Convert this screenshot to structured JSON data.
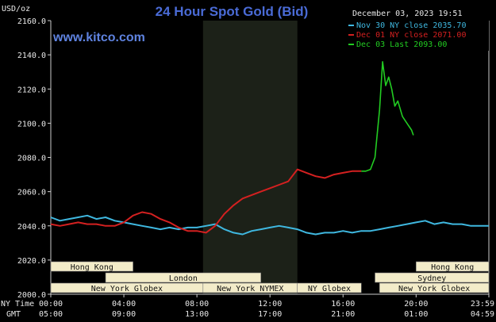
{
  "header": {
    "title": "24 Hour Spot Gold (Bid)",
    "units": "USD/oz",
    "brand": "www.kitco.com",
    "timestamp": "December 03, 2023 19:51"
  },
  "colors": {
    "background": "#000000",
    "nov30": "#3fb8e0",
    "dec01": "#d42020",
    "dec03": "#22cc22",
    "title": "#4a6bd6",
    "shade": "#1c2118",
    "session_box": "#f3ecc9"
  },
  "chart_data": {
    "type": "line",
    "title": "24 Hour Spot Gold (Bid)",
    "ylabel": "USD/oz",
    "ylim": [
      2000,
      2160
    ],
    "yticks": [
      "2160.0",
      "2140.0",
      "2120.0",
      "2100.0",
      "2080.0",
      "2060.0",
      "2040.0",
      "2020.0",
      "2000.0"
    ],
    "xlim": [
      "00:00",
      "23:59"
    ],
    "xticks": [
      {
        "ny": "00:00",
        "gmt": "05:00"
      },
      {
        "ny": "04:00",
        "gmt": "09:00"
      },
      {
        "ny": "08:00",
        "gmt": "13:00"
      },
      {
        "ny": "12:00",
        "gmt": "17:00"
      },
      {
        "ny": "16:00",
        "gmt": "21:00"
      },
      {
        "ny": "20:00",
        "gmt": "01:00"
      },
      {
        "ny": "23:59",
        "gmt": "04:59"
      }
    ],
    "xaxis_labels": {
      "ny": "NY Time",
      "gmt": "GMT"
    },
    "shaded_range": [
      "08:20",
      "13:30"
    ],
    "grid": false,
    "legend_position": "top-right",
    "series": [
      {
        "name": "Nov 30 NY close 2035.70",
        "color": "#3fb8e0",
        "x": [
          "00:00",
          "00:30",
          "01:00",
          "01:30",
          "02:00",
          "02:30",
          "03:00",
          "03:30",
          "04:00",
          "04:30",
          "05:00",
          "05:30",
          "06:00",
          "06:30",
          "07:00",
          "07:30",
          "08:00",
          "08:30",
          "09:00",
          "09:30",
          "10:00",
          "10:30",
          "11:00",
          "11:30",
          "12:00",
          "12:30",
          "13:00",
          "13:30",
          "14:00",
          "14:30",
          "15:00",
          "15:30",
          "16:00",
          "16:30",
          "17:00",
          "17:30",
          "18:00",
          "18:30",
          "19:00",
          "19:30",
          "20:00",
          "20:30",
          "21:00",
          "21:30",
          "22:00",
          "22:30",
          "23:00",
          "23:30",
          "23:59"
        ],
        "values": [
          2045,
          2043,
          2044,
          2045,
          2046,
          2044,
          2045,
          2043,
          2042,
          2041,
          2040,
          2039,
          2038,
          2039,
          2038,
          2039,
          2039,
          2040,
          2041,
          2038,
          2036,
          2035,
          2037,
          2038,
          2039,
          2040,
          2039,
          2038,
          2036,
          2035,
          2036,
          2036,
          2037,
          2036,
          2037,
          2037,
          2038,
          2039,
          2040,
          2041,
          2042,
          2043,
          2041,
          2042,
          2041,
          2041,
          2040,
          2040,
          2040
        ]
      },
      {
        "name": "Dec 01 NY close 2071.00",
        "color": "#d42020",
        "x": [
          "00:00",
          "00:30",
          "01:00",
          "01:30",
          "02:00",
          "02:30",
          "03:00",
          "03:30",
          "04:00",
          "04:30",
          "05:00",
          "05:30",
          "06:00",
          "06:30",
          "07:00",
          "07:30",
          "08:00",
          "08:30",
          "09:00",
          "09:30",
          "10:00",
          "10:30",
          "11:00",
          "11:30",
          "12:00",
          "12:30",
          "13:00",
          "13:30",
          "14:00",
          "14:30",
          "15:00",
          "15:30",
          "16:00",
          "16:30",
          "17:00"
        ],
        "values": [
          2041,
          2040,
          2041,
          2042,
          2041,
          2041,
          2040,
          2040,
          2042,
          2046,
          2048,
          2047,
          2044,
          2042,
          2039,
          2037,
          2037,
          2036,
          2040,
          2047,
          2052,
          2056,
          2058,
          2060,
          2062,
          2064,
          2066,
          2073,
          2071,
          2069,
          2068,
          2070,
          2071,
          2072,
          2072
        ]
      },
      {
        "name": "Dec 03 Last 2093.00",
        "color": "#22cc22",
        "x": [
          "17:00",
          "17:15",
          "17:30",
          "17:45",
          "18:00",
          "18:10",
          "18:20",
          "18:30",
          "18:40",
          "18:50",
          "19:00",
          "19:15",
          "19:30",
          "19:45",
          "19:51"
        ],
        "values": [
          2072,
          2072,
          2073,
          2080,
          2108,
          2136,
          2122,
          2127,
          2120,
          2110,
          2113,
          2104,
          2100,
          2096,
          2093
        ]
      }
    ],
    "session_rows": [
      [
        {
          "name": "Hong Kong",
          "start": "00:00",
          "end": "04:30"
        },
        {
          "name": "Hong Kong",
          "start": "20:00",
          "end": "23:59"
        }
      ],
      [
        {
          "name": "London",
          "start": "03:00",
          "end": "11:30"
        },
        {
          "name": "Sydney",
          "start": "17:45",
          "end": "23:59"
        }
      ],
      [
        {
          "name": "New York Globex",
          "start": "00:00",
          "end": "08:20"
        },
        {
          "name": "New York NYMEX",
          "start": "08:20",
          "end": "13:30"
        },
        {
          "name": "NY Globex",
          "start": "13:30",
          "end": "17:00"
        },
        {
          "name": "New York Globex",
          "start": "18:00",
          "end": "23:59"
        }
      ]
    ]
  }
}
